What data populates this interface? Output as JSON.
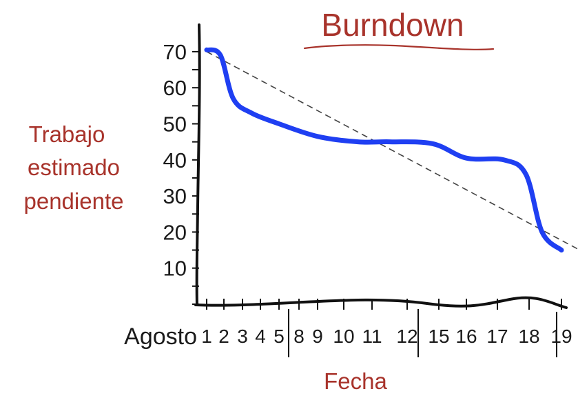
{
  "chart_data": {
    "type": "line",
    "title": "Burndown",
    "ylabel_lines": [
      "Trabajo",
      "estimado",
      "pendiente"
    ],
    "xlabel": "Fecha",
    "x_prefix": "Agosto",
    "categories": [
      "1",
      "2",
      "3",
      "4",
      "5",
      "8",
      "9",
      "10",
      "11",
      "12",
      "15",
      "16",
      "17",
      "18",
      "19"
    ],
    "yticks": [
      10,
      20,
      30,
      40,
      50,
      60,
      70
    ],
    "ylim": [
      0,
      75
    ],
    "grid": false,
    "colors": {
      "title": "#a8332b",
      "labels": "#a8332b",
      "actual": "#1f3ff2",
      "ideal": "#444444",
      "axis": "#111111"
    },
    "series": [
      {
        "role": "actual",
        "x": [
          1,
          1.8,
          2.5,
          3.5,
          5,
          7,
          8.5,
          9.5,
          10.8,
          12,
          13.2,
          13.9,
          14.4,
          15
        ],
        "y": [
          70.5,
          69,
          57,
          53,
          50,
          46.5,
          45,
          45,
          44.5,
          40.5,
          40,
          36,
          20,
          15
        ]
      },
      {
        "role": "ideal",
        "x": [
          1,
          18.5
        ],
        "y": [
          70,
          1
        ]
      }
    ]
  }
}
